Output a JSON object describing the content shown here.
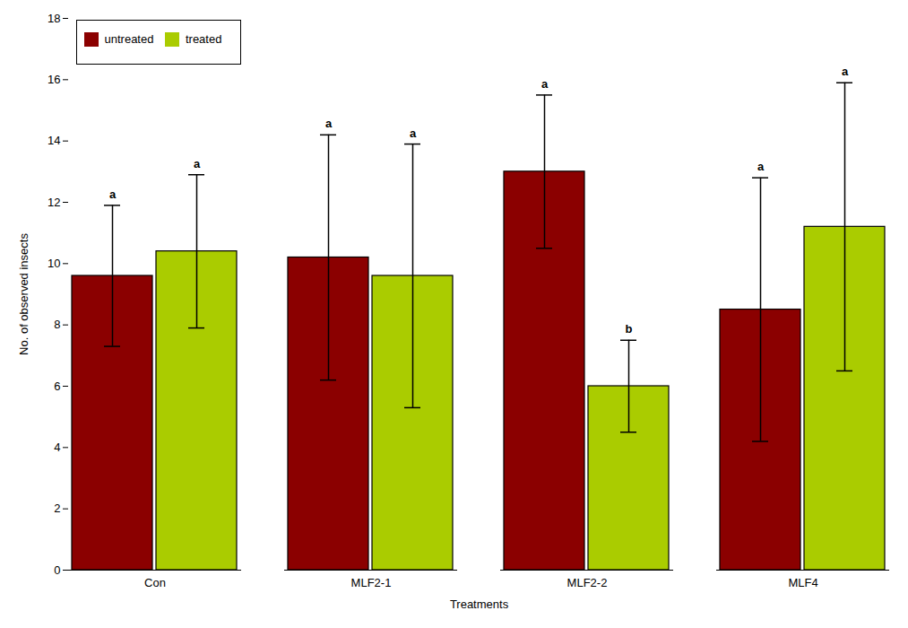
{
  "chart_data": {
    "type": "bar",
    "categories": [
      "Con",
      "MLF2-1",
      "MLF2-2",
      "MLF4"
    ],
    "series": [
      {
        "name": "untreated",
        "color": "#8B0000",
        "values": [
          9.6,
          10.2,
          13.0,
          8.5
        ],
        "errors": [
          2.3,
          4.0,
          2.5,
          4.3
        ],
        "annotations": [
          "a",
          "a",
          "a",
          "a"
        ]
      },
      {
        "name": "treated",
        "color": "#AACC00",
        "values": [
          10.4,
          9.6,
          6.0,
          11.2
        ],
        "errors": [
          2.5,
          4.3,
          1.5,
          4.7
        ],
        "annotations": [
          "a",
          "a",
          "b",
          "a"
        ]
      }
    ],
    "xlabel": "Treatments",
    "ylabel": "No. of observed insects",
    "ylim": [
      0,
      18
    ],
    "yticks": [
      0,
      2,
      4,
      6,
      8,
      10,
      12,
      14,
      16,
      18
    ],
    "grid": false,
    "legend": "upper left"
  }
}
